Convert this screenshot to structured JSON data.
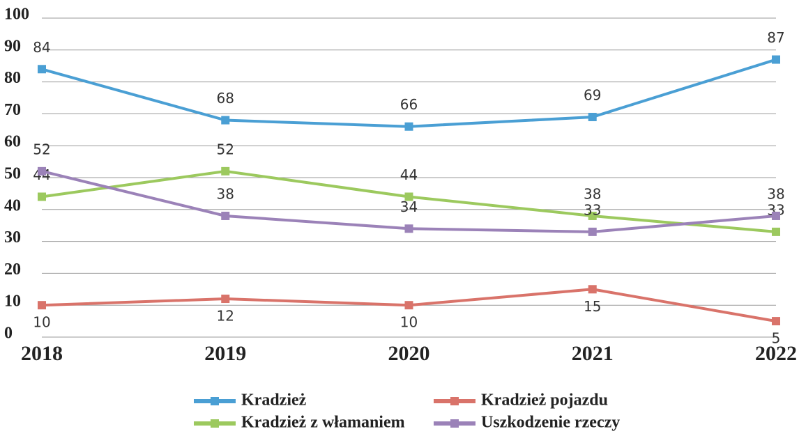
{
  "chart_data": {
    "type": "line",
    "categories": [
      "2018",
      "2019",
      "2020",
      "2021",
      "2022"
    ],
    "series": [
      {
        "name": "Kradzież",
        "color": "#4a9fd4",
        "values": [
          84,
          68,
          66,
          69,
          87
        ]
      },
      {
        "name": "Kradzież pojazdu",
        "color": "#d9736a",
        "values": [
          10,
          12,
          10,
          15,
          5
        ]
      },
      {
        "name": "Kradzież z włamaniem",
        "color": "#9cc95e",
        "values": [
          44,
          52,
          44,
          38,
          33
        ]
      },
      {
        "name": "Uszkodzenie rzeczy",
        "color": "#9b82b8",
        "values": [
          52,
          38,
          34,
          33,
          38
        ]
      }
    ],
    "ylim": [
      0,
      100
    ],
    "yticks": [
      0,
      10,
      20,
      30,
      40,
      50,
      60,
      70,
      80,
      90,
      100
    ],
    "grid": true,
    "legend": "bottom"
  }
}
